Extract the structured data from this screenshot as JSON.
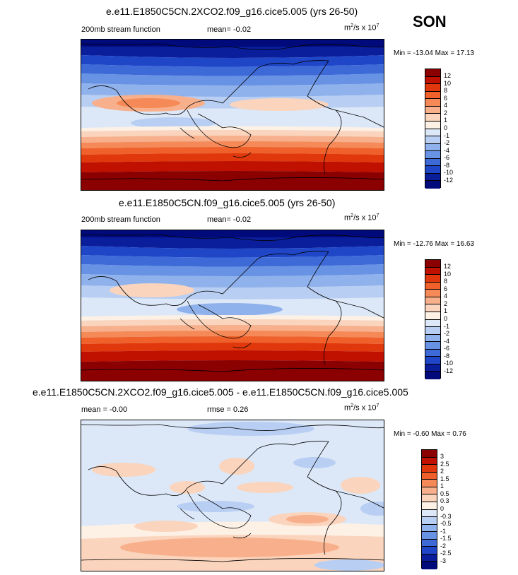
{
  "season": "SON",
  "panels": [
    {
      "title": "e.e11.E1850C5CN.2XCO2.f09_g16.cice5.005 (yrs 26-50)",
      "left_label": "200mb stream function",
      "mid_label": "mean=  -0.02",
      "units_base": "m",
      "units_sup1": "2",
      "units_mid": "/s x 10",
      "units_sup2": "7",
      "minmax": "Min = -13.04 Max =  17.13",
      "levels": [
        "12",
        "10",
        "8",
        "6",
        "4",
        "2",
        "1",
        "0",
        "-1",
        "-2",
        "-4",
        "-6",
        "-8",
        "-10",
        "-12"
      ],
      "colors": [
        "#8b0000",
        "#c01000",
        "#e0380c",
        "#f0602a",
        "#f58a58",
        "#f8b08c",
        "#fad4bc",
        "#fdf0e4",
        "#dce8f8",
        "#b8cef2",
        "#90b2ec",
        "#6892e4",
        "#3e6ad8",
        "#2046c8",
        "#0a1e9c",
        "#000a7a"
      ]
    },
    {
      "title": "e.e11.E1850C5CN.f09_g16.cice5.005 (yrs 26-50)",
      "left_label": "200mb stream function",
      "mid_label": "mean=  -0.02",
      "units_base": "m",
      "units_sup1": "2",
      "units_mid": "/s x 10",
      "units_sup2": "7",
      "minmax": "Min = -12.76 Max =  16.63",
      "levels": [
        "12",
        "10",
        "8",
        "6",
        "4",
        "2",
        "1",
        "0",
        "-1",
        "-2",
        "-4",
        "-6",
        "-8",
        "-10",
        "-12"
      ],
      "colors": [
        "#8b0000",
        "#c01000",
        "#e0380c",
        "#f0602a",
        "#f58a58",
        "#f8b08c",
        "#fad4bc",
        "#fdf0e4",
        "#dce8f8",
        "#b8cef2",
        "#90b2ec",
        "#6892e4",
        "#3e6ad8",
        "#2046c8",
        "#0a1e9c",
        "#000a7a"
      ]
    },
    {
      "title": "e.e11.E1850C5CN.2XCO2.f09_g16.cice5.005 - e.e11.E1850C5CN.f09_g16.cice5.005",
      "left_label": "mean =  -0.00",
      "mid_label": "rmse =   0.26",
      "units_base": "m",
      "units_sup1": "2",
      "units_mid": "/s x 10",
      "units_sup2": "7",
      "minmax": "Min = -0.60 Max =   0.76",
      "levels": [
        "3",
        "2.5",
        "2",
        "1.5",
        "1",
        "0.5",
        "0.3",
        "0",
        "-0.3",
        "-0.5",
        "-1",
        "-1.5",
        "-2",
        "-2.5",
        "-3"
      ],
      "colors": [
        "#8b0000",
        "#c01000",
        "#e0380c",
        "#f0602a",
        "#f58a58",
        "#f8b08c",
        "#fad4bc",
        "#fdf0e4",
        "#dce8f8",
        "#b8cef2",
        "#90b2ec",
        "#6892e4",
        "#3e6ad8",
        "#2046c8",
        "#0a1e9c",
        "#000a7a"
      ]
    }
  ]
}
